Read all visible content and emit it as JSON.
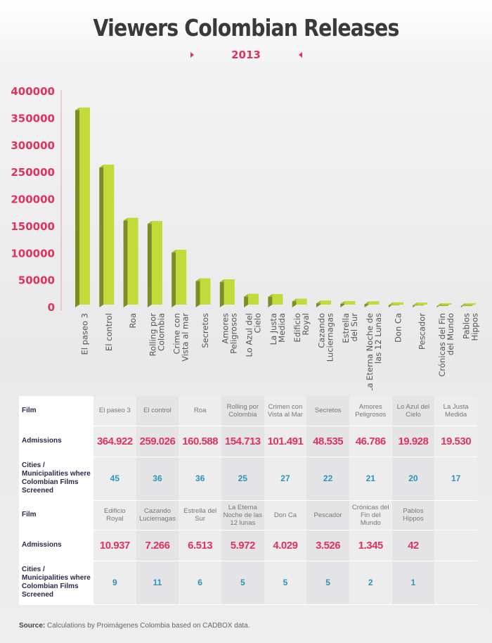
{
  "header": {
    "title": "Viewers Colombian Releases",
    "year": "2013"
  },
  "chart_data": {
    "type": "bar",
    "categories": [
      "El paseo 3",
      "El control",
      "Roa",
      "Rolling por Colombia",
      "Crime con Vista al mar",
      "Secretos",
      "Amores Peligrosos",
      "Lo Azul del Cielo",
      "La Justa Medida",
      "Edificio Royal",
      "Cazando Luciernagas",
      "Estrella del Sur",
      "La Eterna Noche de las 12 Lunas",
      "Don Ca",
      "Pescador",
      "Crónicas del Fin del Mundo",
      "Pablos Hippos"
    ],
    "values": [
      364922,
      259026,
      160588,
      154713,
      101491,
      48535,
      46786,
      19928,
      19530,
      10937,
      7266,
      6513,
      5972,
      4029,
      3526,
      1345,
      42
    ],
    "yticks": [
      "0",
      "50000",
      "100000",
      "150000",
      "200000",
      "250000",
      "300000",
      "350000",
      "400000"
    ],
    "ylim": [
      0,
      400000
    ],
    "colors": {
      "front": "#c3db3a",
      "side": "#7e8c25",
      "top": "#a8bd2e"
    }
  },
  "table": {
    "blocks": [
      {
        "film_label": "Film",
        "admissions_label": "Admissions",
        "cities_label": "Cities / Municipalities where Colombian Films Screened",
        "films": [
          "El paseo 3",
          "El control",
          "Roa",
          "Rolling por Colombia",
          "Crimen con Vista al Mar",
          "Secretos",
          "Amores Peligrosos",
          "Lo Azul del Cielo",
          "La Justa Medida"
        ],
        "admissions": [
          "364.922",
          "259.026",
          "160.588",
          "154.713",
          "101.491",
          "48.535",
          "46.786",
          "19.928",
          "19.530"
        ],
        "cities": [
          "45",
          "36",
          "36",
          "25",
          "27",
          "22",
          "21",
          "20",
          "17"
        ]
      },
      {
        "film_label": "Film",
        "admissions_label": "Admissions",
        "cities_label": "Cities / Municipalities where Colombian Films Screened",
        "films": [
          "Edificio Royal",
          "Cazando Luciernagas",
          "Estrella del Sur",
          "La Eterna Noche de las 12 lunas",
          "Don Ca",
          "Pescador",
          "Crónicas del Fin del Mundo",
          "Pablos Hippos",
          ""
        ],
        "admissions": [
          "10.937",
          "7.266",
          "6.513",
          "5.972",
          "4.029",
          "3.526",
          "1.345",
          "42",
          ""
        ],
        "cities": [
          "9",
          "11",
          "6",
          "5",
          "5",
          "5",
          "2",
          "1",
          ""
        ]
      }
    ]
  },
  "source": {
    "label": "Source:",
    "text": " Calculations by Proimágenes Colombia based on CADBOX data."
  }
}
